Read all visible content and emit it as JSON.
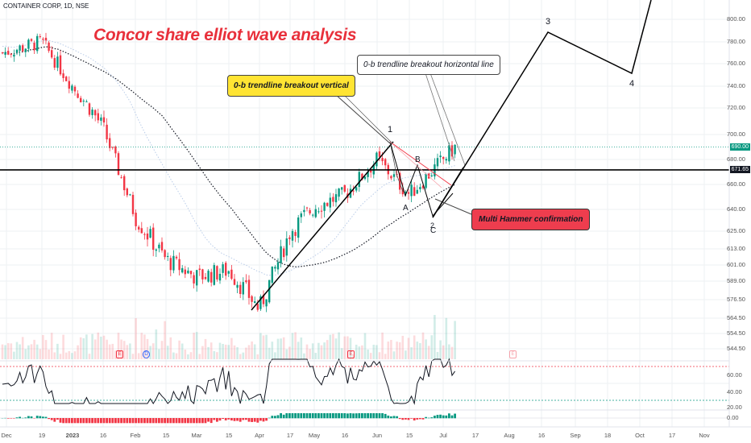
{
  "header": {
    "symbol": "CONTAINER CORP, 1D, NSE",
    "title": "Concor share elliot wave analysis"
  },
  "annotations": {
    "callout_vertical": "0-b trendline breakout vertical",
    "callout_horizontal": "0-b trendline breakout horizontal line",
    "callout_hammer": "Multi Hammer confirmation",
    "wave_1": "1",
    "wave_3": "3",
    "wave_4": "4",
    "wave_a": "A",
    "wave_b": "B",
    "wave_c": "C",
    "wave_2": "2"
  },
  "price_tags": {
    "last": "690.00",
    "hline": "671.65"
  },
  "event_icons": [
    "E",
    "D",
    "E",
    "E"
  ],
  "colors": {
    "up": "#089981",
    "down": "#f23645",
    "title": "#e8303b",
    "yellow": "#ffe433",
    "red_callout": "#ee3d4e"
  },
  "chart_data": {
    "type": "candlestick",
    "symbol": "CONTAINER CORP",
    "interval": "1D",
    "exchange": "NSE",
    "y_ticks": [
      {
        "label": "800.00",
        "value": 800
      },
      {
        "label": "780.00",
        "value": 780
      },
      {
        "label": "760.00",
        "value": 760
      },
      {
        "label": "740.00",
        "value": 740
      },
      {
        "label": "720.00",
        "value": 720
      },
      {
        "label": "700.00",
        "value": 700
      },
      {
        "label": "680.00",
        "value": 680
      },
      {
        "label": "660.00",
        "value": 660
      },
      {
        "label": "640.00",
        "value": 640
      },
      {
        "label": "625.00",
        "value": 625
      },
      {
        "label": "613.00",
        "value": 613
      },
      {
        "label": "601.00",
        "value": 601
      },
      {
        "label": "589.00",
        "value": 589
      },
      {
        "label": "576.50",
        "value": 576.5
      },
      {
        "label": "564.50",
        "value": 564.5
      },
      {
        "label": "554.50",
        "value": 554.5
      },
      {
        "label": "544.50",
        "value": 544.5
      }
    ],
    "x_ticks": [
      "Dec",
      "19",
      "2023",
      "16",
      "Feb",
      "15",
      "Mar",
      "15",
      "Apr",
      "17",
      "May",
      "16",
      "Jun",
      "15",
      "Jul",
      "17",
      "Aug",
      "16",
      "Sep",
      "18",
      "Oct",
      "17",
      "Nov"
    ],
    "rsi_ticks": [
      {
        "label": "60.00",
        "value": 60
      },
      {
        "label": "40.00",
        "value": 40
      },
      {
        "label": "20.00",
        "value": 20
      }
    ],
    "macd_ticks": [
      {
        "label": "0.00",
        "value": 0
      }
    ],
    "rsi_levels": [
      70,
      30
    ],
    "last_price": 690.0,
    "horizontal_line": 671.65,
    "close_path": [
      {
        "x": "Dec",
        "y": 770
      },
      {
        "x": "19",
        "y": 780
      },
      {
        "x": "2023",
        "y": 740
      },
      {
        "x": "16",
        "y": 705
      },
      {
        "x": "Feb",
        "y": 635
      },
      {
        "x": "15",
        "y": 605
      },
      {
        "x": "Mar",
        "y": 592
      },
      {
        "x": "15",
        "y": 597
      },
      {
        "x": "Apr",
        "y": 570
      },
      {
        "x": "17",
        "y": 625
      },
      {
        "x": "May",
        "y": 642
      },
      {
        "x": "16",
        "y": 652
      },
      {
        "x": "Jun",
        "y": 680
      },
      {
        "x": "15",
        "y": 652
      },
      {
        "x": "Jul",
        "y": 690
      }
    ],
    "wave_projection": [
      {
        "label": "1",
        "y": 697
      },
      {
        "label": "2",
        "y": 640
      },
      {
        "label": "3",
        "y": 790
      },
      {
        "label": "4",
        "y": 752
      }
    ]
  }
}
